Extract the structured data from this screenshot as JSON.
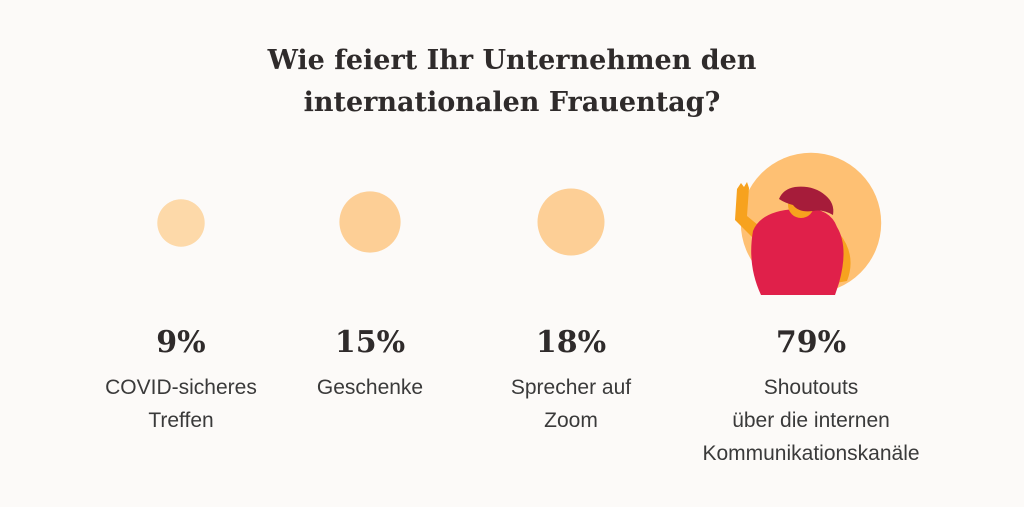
{
  "title_lines": [
    "Wie feiert Ihr Unternehmen den",
    "internationalen Frauentag?"
  ],
  "colors": {
    "bubble_light": "#fdd9a9",
    "bubble_mid": "#fdcf96",
    "bubble_large": "#fec073",
    "figure_shirt": "#e0204a",
    "figure_hair": "#a61c3a",
    "figure_skin": "#f7a21e"
  },
  "chart_data": {
    "type": "bubble",
    "title": "Wie feiert Ihr Unternehmen den internationalen Frauentag?",
    "categories": [
      [
        "COVID-sicheres",
        "Treffen"
      ],
      [
        "Geschenke"
      ],
      [
        "Sprecher auf",
        "Zoom"
      ],
      [
        "Shoutouts",
        "über die internen",
        "Kommunikationskanäle"
      ]
    ],
    "values": [
      9,
      15,
      18,
      79
    ],
    "value_labels": [
      "9%",
      "15%",
      "18%",
      "79%"
    ],
    "unit": "%"
  }
}
